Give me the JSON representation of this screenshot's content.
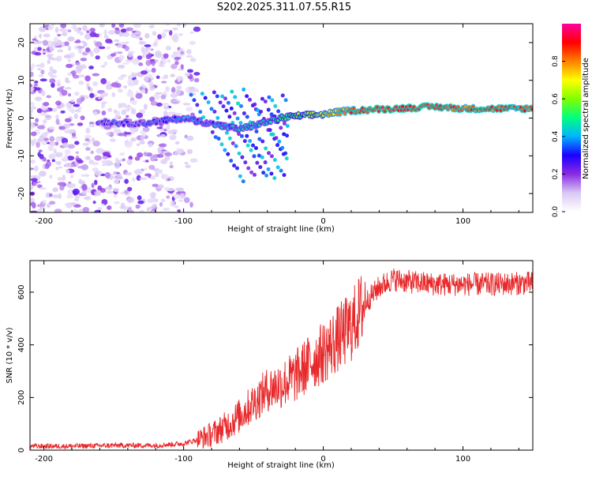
{
  "title": "S202.2025.311.07.55.R15",
  "chart_data": [
    {
      "type": "heatmap",
      "name": "spectrogram",
      "xlabel": "Height of straight line (km)",
      "ylabel": "Frequency (Hz)",
      "xlim": [
        -210,
        150
      ],
      "ylim": [
        -25,
        25
      ],
      "xticks": [
        -200,
        -100,
        0,
        100
      ],
      "yticks": [
        -20,
        -10,
        0,
        10,
        20
      ],
      "colorbar": {
        "label": "Normalized spectral amplitude",
        "range": [
          0,
          1
        ],
        "ticks": [
          "0.0",
          "0.2",
          "0.4",
          "0.6",
          "0.8"
        ],
        "colors": [
          "#ffffff",
          "#d9c8f5",
          "#8a2be2",
          "#1a00ff",
          "#00b4ff",
          "#00ff80",
          "#80ff00",
          "#ffff00",
          "#ff8000",
          "#ff0000",
          "#ff00a0"
        ]
      },
      "description_series": [
        {
          "name": "noise region",
          "x_range": [
            -210,
            -90
          ],
          "freq_range": [
            -25,
            25
          ],
          "amplitude": 0.1
        },
        {
          "name": "main trace",
          "x": [
            -160,
            -130,
            -100,
            -60,
            -40,
            -30,
            -20,
            0,
            20,
            50,
            80,
            100,
            120,
            150
          ],
          "freq": [
            -1,
            -1.5,
            0,
            -3,
            -1,
            0,
            0.5,
            1,
            2,
            2.5,
            3,
            2.5,
            2.5,
            2.5
          ],
          "amplitude": [
            0.3,
            0.3,
            0.35,
            0.4,
            0.45,
            0.5,
            0.55,
            0.7,
            0.85,
            0.95,
            0.9,
            0.85,
            0.85,
            0.85
          ]
        }
      ]
    },
    {
      "type": "line",
      "name": "snr",
      "xlabel": "Height of straight line (km)",
      "ylabel": "SNR (10 * v/v)",
      "xlim": [
        -210,
        150
      ],
      "ylim": [
        0,
        720
      ],
      "xticks": [
        -200,
        -100,
        0,
        100
      ],
      "yticks": [
        0,
        200,
        400,
        600
      ],
      "color": "#e8282a",
      "series": [
        {
          "name": "SNR",
          "x": [
            -210,
            -180,
            -150,
            -120,
            -100,
            -90,
            -80,
            -70,
            -60,
            -50,
            -40,
            -30,
            -20,
            -10,
            0,
            10,
            20,
            30,
            40,
            50,
            60,
            80,
            100,
            120,
            150
          ],
          "values": [
            15,
            15,
            18,
            18,
            25,
            40,
            60,
            90,
            130,
            180,
            230,
            250,
            280,
            330,
            370,
            420,
            470,
            560,
            620,
            650,
            640,
            630,
            630,
            630,
            635
          ]
        }
      ]
    }
  ]
}
